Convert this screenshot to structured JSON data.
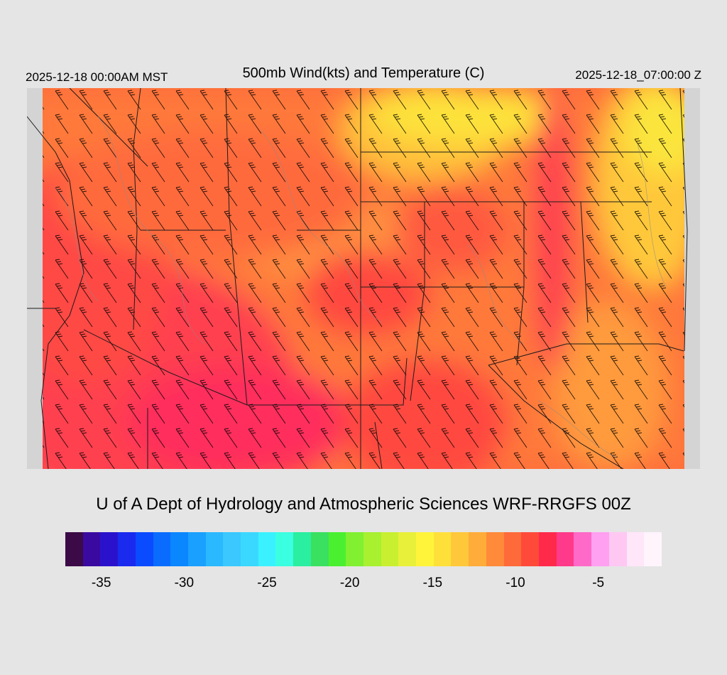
{
  "header": {
    "left_label": "2025-12-18 00:00AM MST",
    "title": "500mb Wind(kts) and Temperature (C)",
    "right_label": "2025-12-18_07:00:00 Z"
  },
  "map": {
    "description_fields": "500mb wind barbs over temperature shading",
    "colors": {
      "background": "#d4d4d4",
      "cold_warm_field": [
        "#ff9a3c",
        "#ff7a3c",
        "#ff5a40",
        "#ff3f4f",
        "#fde23a",
        "#ffc83a"
      ],
      "boundary": "#000000",
      "contour": "#8a8a8a",
      "barb": "#000000"
    }
  },
  "footer": {
    "credit": "U of A Dept of Hydrology and Atmospheric Sciences WRF-RRGFS 00Z"
  },
  "colorbar": {
    "colors": [
      "#3b0a47",
      "#3a0aa0",
      "#2a12cc",
      "#1a2aee",
      "#0a4bff",
      "#0a6cff",
      "#0a86ff",
      "#1aa0ff",
      "#2ab8ff",
      "#3ac8ff",
      "#3ad8ff",
      "#3af2ff",
      "#3affe0",
      "#2aeea0",
      "#3ae060",
      "#4af030",
      "#80f030",
      "#a8f030",
      "#c8f030",
      "#e8f03a",
      "#fff43a",
      "#ffe03a",
      "#ffc83a",
      "#ffac3a",
      "#ff8a3a",
      "#ff6a3a",
      "#ff4a3a",
      "#ff2a4a",
      "#ff3a8a",
      "#ff6ac8",
      "#ffa0f0",
      "#ffc8f2",
      "#ffe6f8",
      "#fff4fc"
    ],
    "tick_labels": [
      "-35",
      "-30",
      "-25",
      "-20",
      "-15",
      "-10",
      "-5"
    ],
    "tick_values": [
      -35,
      -30,
      -25,
      -20,
      -15,
      -10,
      -5
    ],
    "range": [
      -37,
      -1
    ]
  }
}
